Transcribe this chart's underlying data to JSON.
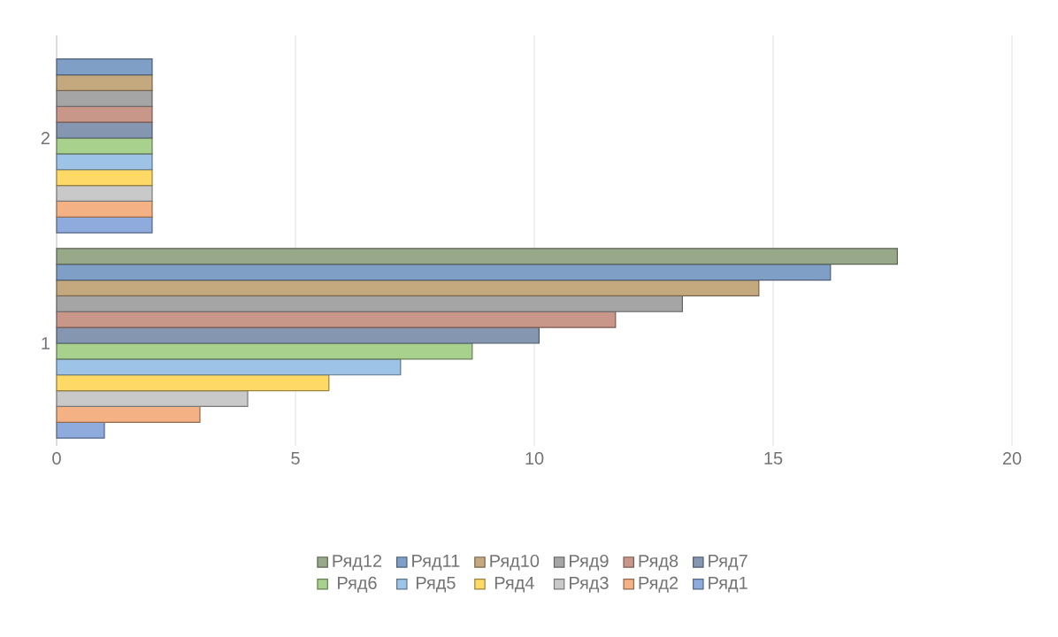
{
  "chart_data": {
    "type": "bar",
    "orientation": "horizontal",
    "categories": [
      "2",
      "1"
    ],
    "series": [
      {
        "name": "Ряд1",
        "color": "#8faadc",
        "values": [
          2,
          1
        ]
      },
      {
        "name": "Ряд2",
        "color": "#f4b183",
        "values": [
          2,
          3
        ]
      },
      {
        "name": "Ряд3",
        "color": "#c9c9c9",
        "values": [
          2,
          4
        ]
      },
      {
        "name": "Ряд4",
        "color": "#ffd966",
        "values": [
          2,
          5.7
        ]
      },
      {
        "name": "Ряд5",
        "color": "#9dc3e6",
        "values": [
          2,
          7.2
        ]
      },
      {
        "name": "Ряд6",
        "color": "#a9d18e",
        "values": [
          2,
          8.7
        ]
      },
      {
        "name": "Ряд7",
        "color": "#8496b0",
        "values": [
          2,
          10.1
        ]
      },
      {
        "name": "Ряд8",
        "color": "#c9978a",
        "values": [
          2,
          11.7
        ]
      },
      {
        "name": "Ряд9",
        "color": "#a5a5a5",
        "values": [
          2,
          13.1
        ]
      },
      {
        "name": "Ряд10",
        "color": "#c4a97f",
        "values": [
          2,
          14.7
        ]
      },
      {
        "name": "Ряд11",
        "color": "#7f9fc6",
        "values": [
          2,
          16.2
        ]
      },
      {
        "name": "Ряд12",
        "color": "#97a98a",
        "values": [
          null,
          17.6
        ]
      }
    ],
    "xlim": [
      0,
      20
    ],
    "xticks": [
      0,
      5,
      10,
      15,
      20
    ],
    "grid": "x",
    "legend": "bottom"
  }
}
